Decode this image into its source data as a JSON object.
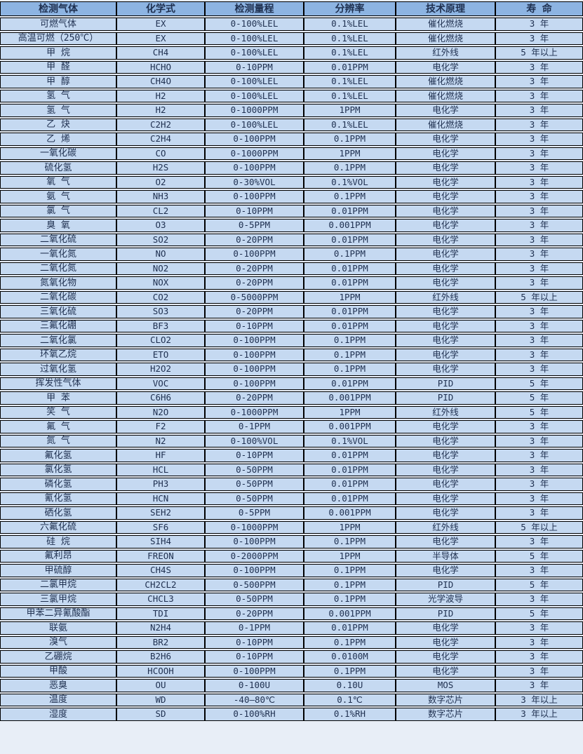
{
  "table": {
    "headers": [
      "检测气体",
      "化学式",
      "检测量程",
      "分辨率",
      "技术原理",
      "寿 命"
    ],
    "column_keys": [
      "gas",
      "formula",
      "range",
      "resolution",
      "principle",
      "lifespan"
    ],
    "rows": [
      [
        "可燃气体",
        "EX",
        "0-100%LEL",
        "0.1%LEL",
        "催化燃烧",
        "3 年"
      ],
      [
        "高温可燃（250℃）",
        "EX",
        "0-100%LEL",
        "0.1%LEL",
        "催化燃烧",
        "3 年"
      ],
      [
        "甲 烷",
        "CH4",
        "0-100%LEL",
        "0.1%LEL",
        "红外线",
        "5 年以上"
      ],
      [
        "甲 醛",
        "HCHO",
        "0-10PPM",
        "0.01PPM",
        "电化学",
        "3 年"
      ],
      [
        "甲 醇",
        "CH4O",
        "0-100%LEL",
        "0.1%LEL",
        "催化燃烧",
        "3 年"
      ],
      [
        "氢 气",
        "H2",
        "0-100%LEL",
        "0.1%LEL",
        "催化燃烧",
        "3 年"
      ],
      [
        "氢 气",
        "H2",
        "0-1000PPM",
        "1PPM",
        "电化学",
        "3 年"
      ],
      [
        "乙 炔",
        "C2H2",
        "0-100%LEL",
        "0.1%LEL",
        "催化燃烧",
        "3 年"
      ],
      [
        "乙 烯",
        "C2H4",
        "0-100PPM",
        "0.1PPM",
        "电化学",
        "3 年"
      ],
      [
        "一氧化碳",
        "CO",
        "0-1000PPM",
        "1PPM",
        "电化学",
        "3 年"
      ],
      [
        "硫化氢",
        "H2S",
        "0-100PPM",
        "0.1PPM",
        "电化学",
        "3 年"
      ],
      [
        "氧 气",
        "O2",
        "0-30%VOL",
        "0.1%VOL",
        "电化学",
        "3 年"
      ],
      [
        "氨 气",
        "NH3",
        "0-100PPM",
        "0.1PPM",
        "电化学",
        "3 年"
      ],
      [
        "氯 气",
        "CL2",
        "0-10PPM",
        "0.01PPM",
        "电化学",
        "3 年"
      ],
      [
        "臭 氧",
        "O3",
        "0-5PPM",
        "0.001PPM",
        "电化学",
        "3 年"
      ],
      [
        "二氧化硫",
        "SO2",
        "0-20PPM",
        "0.01PPM",
        "电化学",
        "3 年"
      ],
      [
        "一氧化氮",
        "NO",
        "0-100PPM",
        "0.1PPM",
        "电化学",
        "3 年"
      ],
      [
        "二氧化氮",
        "NO2",
        "0-20PPM",
        "0.01PPM",
        "电化学",
        "3 年"
      ],
      [
        "氮氧化物",
        "NOX",
        "0-20PPM",
        "0.01PPM",
        "电化学",
        "3 年"
      ],
      [
        "二氧化碳",
        "CO2",
        "0-5000PPM",
        "1PPM",
        "红外线",
        "5 年以上"
      ],
      [
        "三氧化硫",
        "SO3",
        "0-20PPM",
        "0.01PPM",
        "电化学",
        "3 年"
      ],
      [
        "三氟化硼",
        "BF3",
        "0-10PPM",
        "0.01PPM",
        "电化学",
        "3 年"
      ],
      [
        "二氧化氯",
        "CLO2",
        "0-100PPM",
        "0.1PPM",
        "电化学",
        "3 年"
      ],
      [
        "环氧乙烷",
        "ETO",
        "0-100PPM",
        "0.1PPM",
        "电化学",
        "3 年"
      ],
      [
        "过氧化氢",
        "H2O2",
        "0-100PPM",
        "0.1PPM",
        "电化学",
        "3 年"
      ],
      [
        "挥发性气体",
        "VOC",
        "0-100PPM",
        "0.01PPM",
        "PID",
        "5 年"
      ],
      [
        "甲 苯",
        "C6H6",
        "0-20PPM",
        "0.001PPM",
        "PID",
        "5 年"
      ],
      [
        "笑 气",
        "N2O",
        "0-1000PPM",
        "1PPM",
        "红外线",
        "5 年"
      ],
      [
        "氟 气",
        "F2",
        "0-1PPM",
        "0.001PPM",
        "电化学",
        "3 年"
      ],
      [
        "氮 气",
        "N2",
        "0-100%VOL",
        "0.1%VOL",
        "电化学",
        "3 年"
      ],
      [
        "氟化氢",
        "HF",
        "0-10PPM",
        "0.01PPM",
        "电化学",
        "3 年"
      ],
      [
        "氯化氢",
        "HCL",
        "0-50PPM",
        "0.01PPM",
        "电化学",
        "3 年"
      ],
      [
        "磷化氢",
        "PH3",
        "0-50PPM",
        "0.01PPM",
        "电化学",
        "3 年"
      ],
      [
        "氰化氢",
        "HCN",
        "0-50PPM",
        "0.01PPM",
        "电化学",
        "3 年"
      ],
      [
        "硒化氢",
        "SEH2",
        "0-5PPM",
        "0.001PPM",
        "电化学",
        "3 年"
      ],
      [
        "六氟化硫",
        "SF6",
        "0-1000PPM",
        "1PPM",
        "红外线",
        "5 年以上"
      ],
      [
        "硅 烷",
        "SIH4",
        "0-100PPM",
        "0.1PPM",
        "电化学",
        "3 年"
      ],
      [
        "氟利昂",
        "FREON",
        "0-2000PPM",
        "1PPM",
        "半导体",
        "5 年"
      ],
      [
        "甲硫醇",
        "CH4S",
        "0-100PPM",
        "0.1PPM",
        "电化学",
        "3 年"
      ],
      [
        "二氯甲烷",
        "CH2CL2",
        "0-500PPM",
        "0.1PPM",
        "PID",
        "5 年"
      ],
      [
        "三氯甲烷",
        "CHCL3",
        "0-50PPM",
        "0.1PPM",
        "光学波导",
        "3 年"
      ],
      [
        "甲苯二异氰酸酯",
        "TDI",
        "0-20PPM",
        "0.001PPM",
        "PID",
        "5 年"
      ],
      [
        "联氨",
        "N2H4",
        "0-1PPM",
        "0.01PPM",
        "电化学",
        "3 年"
      ],
      [
        "溴气",
        "BR2",
        "0-10PPM",
        "0.1PPM",
        "电化学",
        "3 年"
      ],
      [
        "乙硼烷",
        "B2H6",
        "0-10PPM",
        "0.0100M",
        "电化学",
        "3 年"
      ],
      [
        "甲酸",
        "HCOOH",
        "0-100PPM",
        "0.1PPM",
        "电化学",
        "3 年"
      ],
      [
        "恶臭",
        "OU",
        "0-100U",
        "0.10U",
        "MOS",
        "3 年"
      ],
      [
        "温度",
        "WD",
        "-40—80℃",
        "0.1℃",
        "数字芯片",
        "3 年以上"
      ],
      [
        "湿度",
        "SD",
        "0-100%RH",
        "0.1%RH",
        "数字芯片",
        "3 年以上"
      ]
    ]
  },
  "colors": {
    "header_background": "#8db4e2",
    "row_background": "#c5d9f1",
    "border": "#000000",
    "text": "#1f3050",
    "gap": "#e8eef7"
  }
}
